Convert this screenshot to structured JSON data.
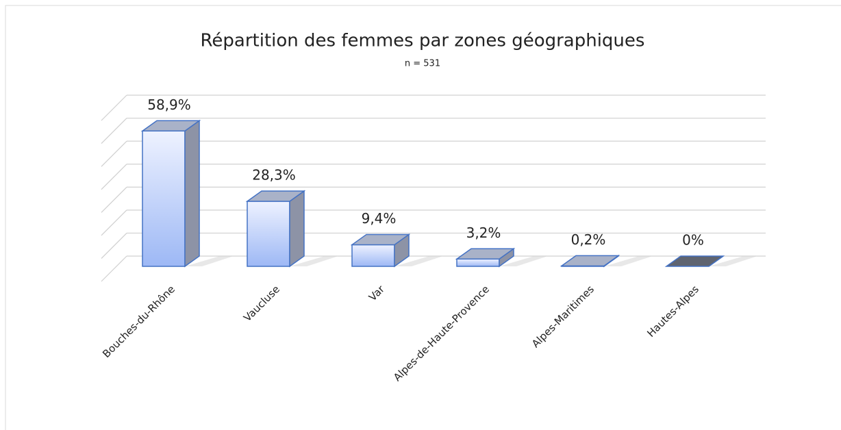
{
  "chart_data": {
    "type": "bar3d",
    "title": "Répartition des femmes par zones géographiques",
    "subtitle": "n = 531",
    "categories": [
      "Bouches-du-Rhône",
      "Vaucluse",
      "Var",
      "Alpes-de-Haute-Provence",
      "Alpes-Maritimes",
      "Hautes-Alpes"
    ],
    "values": [
      58.9,
      28.3,
      9.4,
      3.2,
      0.2,
      0
    ],
    "value_labels": [
      "58,9%",
      "28,3%",
      "9,4%",
      "3,2%",
      "0,2%",
      "0%"
    ],
    "color": "#4472c4",
    "ylim": [
      0,
      70
    ],
    "yticks": [
      0,
      10,
      20,
      30,
      40,
      50,
      60,
      70
    ],
    "grid": true
  }
}
